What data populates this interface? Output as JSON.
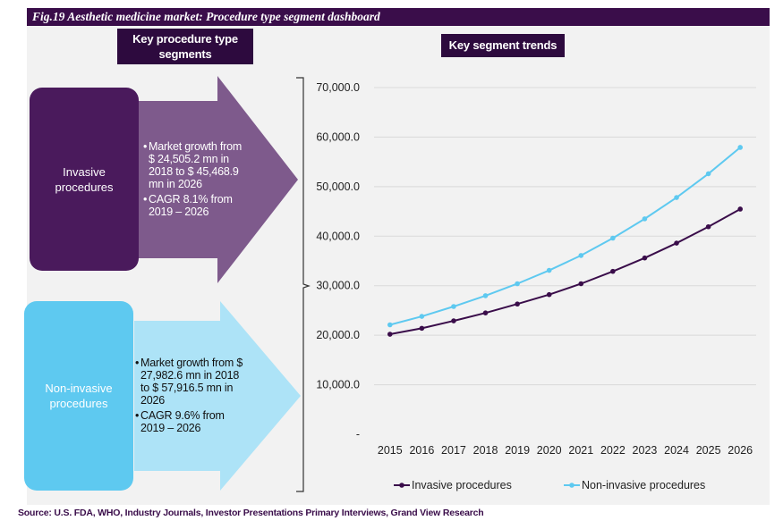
{
  "title": "Fig.19 Aesthetic medicine market: Procedure type segment dashboard",
  "left_header": "Key procedure type segments",
  "right_header": "Key segment trends",
  "segments": {
    "invasive": {
      "label": "Invasive procedures",
      "bullet1": "Market growth from $ 24,505.2 mn in 2018 to $ 45,468.9 mn in 2026",
      "bullet2": "CAGR 8.1% from 2019 – 2026"
    },
    "non_invasive": {
      "label": "Non-invasive procedures",
      "bullet1": "Market growth from $ 27,982.6 mn in 2018 to $ 57,916.5 mn in 2026",
      "bullet2": "CAGR 9.6% from 2019 – 2026"
    }
  },
  "colors": {
    "title_bar": "#3a0d4a",
    "invasive_box": "#4a1a5c",
    "invasive_arrow": "#7e5a8c",
    "non_invasive_box": "#5ec9f0",
    "non_invasive_arrow": "#ade3f7",
    "invasive_line": "#3a0d4a",
    "non_invasive_line": "#5ec9f0"
  },
  "source": "Source: U.S. FDA, WHO, Industry Journals, Investor Presentations Primary Interviews, Grand View Research",
  "chart_data": {
    "type": "line",
    "title": "Key segment trends",
    "x": [
      "2015",
      "2016",
      "2017",
      "2018",
      "2019",
      "2020",
      "2021",
      "2022",
      "2023",
      "2024",
      "2025",
      "2026"
    ],
    "ylim": [
      0,
      70000
    ],
    "yticks": [
      0,
      10000,
      20000,
      30000,
      40000,
      50000,
      60000,
      70000
    ],
    "ytick_labels": [
      "-",
      "10,000.0",
      "20,000.0",
      "30,000.0",
      "40,000.0",
      "50,000.0",
      "60,000.0",
      "70,000.0"
    ],
    "grid": true,
    "legend": "bottom",
    "series": [
      {
        "name": "Invasive procedures",
        "color": "#3a0d4a",
        "values": [
          20200,
          21400,
          22900,
          24505.2,
          26300,
          28200,
          30400,
          32900,
          35600,
          38600,
          41900,
          45468.9
        ]
      },
      {
        "name": "Non-invasive procedures",
        "color": "#5ec9f0",
        "values": [
          22100,
          23800,
          25800,
          27982.6,
          30400,
          33100,
          36100,
          39600,
          43500,
          47800,
          52600,
          57916.5
        ]
      }
    ]
  }
}
